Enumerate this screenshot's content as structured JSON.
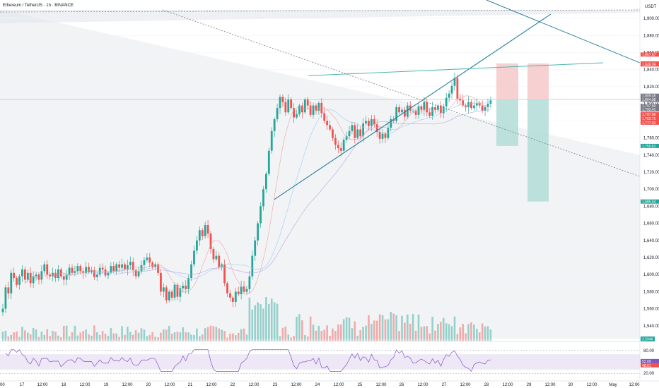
{
  "header": {
    "symbol_title": "Ethereum / TetherUS · 1h · BINANCE",
    "currency": "USDT"
  },
  "colors": {
    "up": "#26a69a",
    "down": "#ef5350",
    "trend": "#2a7f9e",
    "channel": "#4db6ac",
    "rsi": "#7e57c2",
    "rsi_band": "#ede7f6"
  },
  "chart_data": {
    "type": "candlestick",
    "title": "Ethereum / TetherUS · 1h · BINANCE",
    "y_unit": "USDT",
    "ylim": [
      1525,
      1910
    ],
    "y_ticks": [
      1540,
      1560,
      1580,
      1600,
      1620,
      1640,
      1660,
      1680,
      1700,
      1720,
      1740,
      1760,
      1780,
      1800,
      1820,
      1840,
      1860,
      1880,
      1900
    ],
    "y_tick_labels": [
      "1,540.00",
      "1,560.00",
      "1,580.00",
      "1,600.00",
      "1,620.00",
      "1,640.00",
      "1,660.00",
      "1,680.00",
      "1,700.00",
      "1,720.00",
      "1,740.00",
      "1,760.00",
      "1,780.00",
      "1,800.00",
      "1,820.00",
      "1,840.00",
      "1,860.00",
      "1,880.00",
      "1,900.00"
    ],
    "x_labels": [
      "00",
      "17",
      "12:00",
      "18",
      "12:00",
      "19",
      "12:00",
      "20",
      "12:00",
      "21",
      "12:00",
      "22",
      "12:00",
      "23",
      "12:00",
      "24",
      "12:00",
      "25",
      "12:00",
      "26",
      "12:00",
      "27",
      "12:00",
      "28",
      "12:00",
      "29",
      "12:00",
      "30",
      "12:00",
      "May",
      "12:00"
    ],
    "price_labels": [
      {
        "text": "1,857.67",
        "value": 1857.67,
        "color": "#ef5350"
      },
      {
        "text": "1,847.26",
        "value": 1847.26,
        "color": "#ef5350"
      },
      {
        "text": "1,846.09",
        "value": 1846.09,
        "color": "#ef5350"
      },
      {
        "text": "1,809.45",
        "value": 1809.45,
        "color": "#787b86"
      },
      {
        "text": "1,805.14",
        "value": 1805.14,
        "color": "#787b86"
      },
      {
        "text": "1,804.98",
        "value": 1804.98,
        "color": "#787b86"
      },
      {
        "text": "1,797.50",
        "value": 1797.5,
        "color": "#787b86"
      },
      {
        "text": "1,793.41",
        "value": 1793.41,
        "color": "#787b86"
      },
      {
        "text": "1,787.66",
        "value": 1787.66,
        "color": "#ef5350"
      },
      {
        "text": "1,782.75",
        "value": 1782.75,
        "color": "#ef5350"
      },
      {
        "text": "1,777.92",
        "value": 1777.92,
        "color": "#ef5350"
      },
      {
        "text": "1,750.61",
        "value": 1750.61,
        "color": "#26a69a"
      },
      {
        "text": "1,685.54",
        "value": 1685.54,
        "color": "#26a69a"
      }
    ],
    "volume_label": "3.594K",
    "rsi": {
      "ticks": [
        80,
        20
      ],
      "tick_labels": [
        "80.00",
        "20.00"
      ],
      "value_labels": [
        "52.09",
        "48.61"
      ],
      "band": [
        30,
        70
      ]
    },
    "series_close": [
      1560,
      1585,
      1578,
      1602,
      1596,
      1588,
      1598,
      1606,
      1594,
      1602,
      1590,
      1598,
      1600,
      1594,
      1604,
      1612,
      1600,
      1598,
      1602,
      1596,
      1606,
      1598,
      1594,
      1600,
      1608,
      1602,
      1604,
      1610,
      1604,
      1602,
      1609,
      1603,
      1605,
      1597,
      1600,
      1608,
      1606,
      1599,
      1602,
      1610,
      1604,
      1612,
      1608,
      1612,
      1606,
      1611,
      1615,
      1605,
      1598,
      1604,
      1611,
      1617,
      1620,
      1614,
      1609,
      1612,
      1602,
      1580,
      1585,
      1570,
      1580,
      1573,
      1588,
      1574,
      1584,
      1587,
      1583,
      1596,
      1612,
      1628,
      1640,
      1652,
      1645,
      1658,
      1648,
      1630,
      1618,
      1622,
      1609,
      1612,
      1590,
      1578,
      1573,
      1568,
      1580,
      1577,
      1586,
      1580,
      1583,
      1598,
      1622,
      1640,
      1660,
      1680,
      1700,
      1718,
      1745,
      1768,
      1782,
      1795,
      1808,
      1802,
      1790,
      1805,
      1795,
      1784,
      1788,
      1798,
      1790,
      1805,
      1798,
      1787,
      1798,
      1792,
      1801,
      1789,
      1780,
      1775,
      1770,
      1760,
      1752,
      1748,
      1745,
      1758,
      1762,
      1768,
      1775,
      1760,
      1770,
      1762,
      1777,
      1780,
      1774,
      1782,
      1776,
      1767,
      1759,
      1765,
      1760,
      1772,
      1782,
      1780,
      1796,
      1790,
      1793,
      1785,
      1798,
      1792,
      1792,
      1787,
      1797,
      1793,
      1802,
      1790,
      1786,
      1796,
      1793,
      1798,
      1789,
      1797,
      1807,
      1812,
      1821,
      1830,
      1806,
      1804,
      1798,
      1796,
      1802,
      1795,
      1798,
      1801,
      1798,
      1792,
      1796,
      1800,
      1804
    ],
    "trendlines": [
      {
        "name": "ascending-support",
        "from": [
          "23",
          1688
        ],
        "to": [
          "29 12:00",
          1905
        ]
      },
      {
        "name": "channel-top",
        "from": [
          "24",
          1833
        ],
        "to": [
          "29",
          1848
        ]
      },
      {
        "name": "descending-resistance",
        "from": [
          "17",
          1900
        ],
        "to": [
          "28",
          1740
        ]
      }
    ],
    "short_setup": {
      "entry": 1805.14,
      "stop": 1847.26,
      "targets": [
        1750.61,
        1685.54
      ]
    }
  }
}
